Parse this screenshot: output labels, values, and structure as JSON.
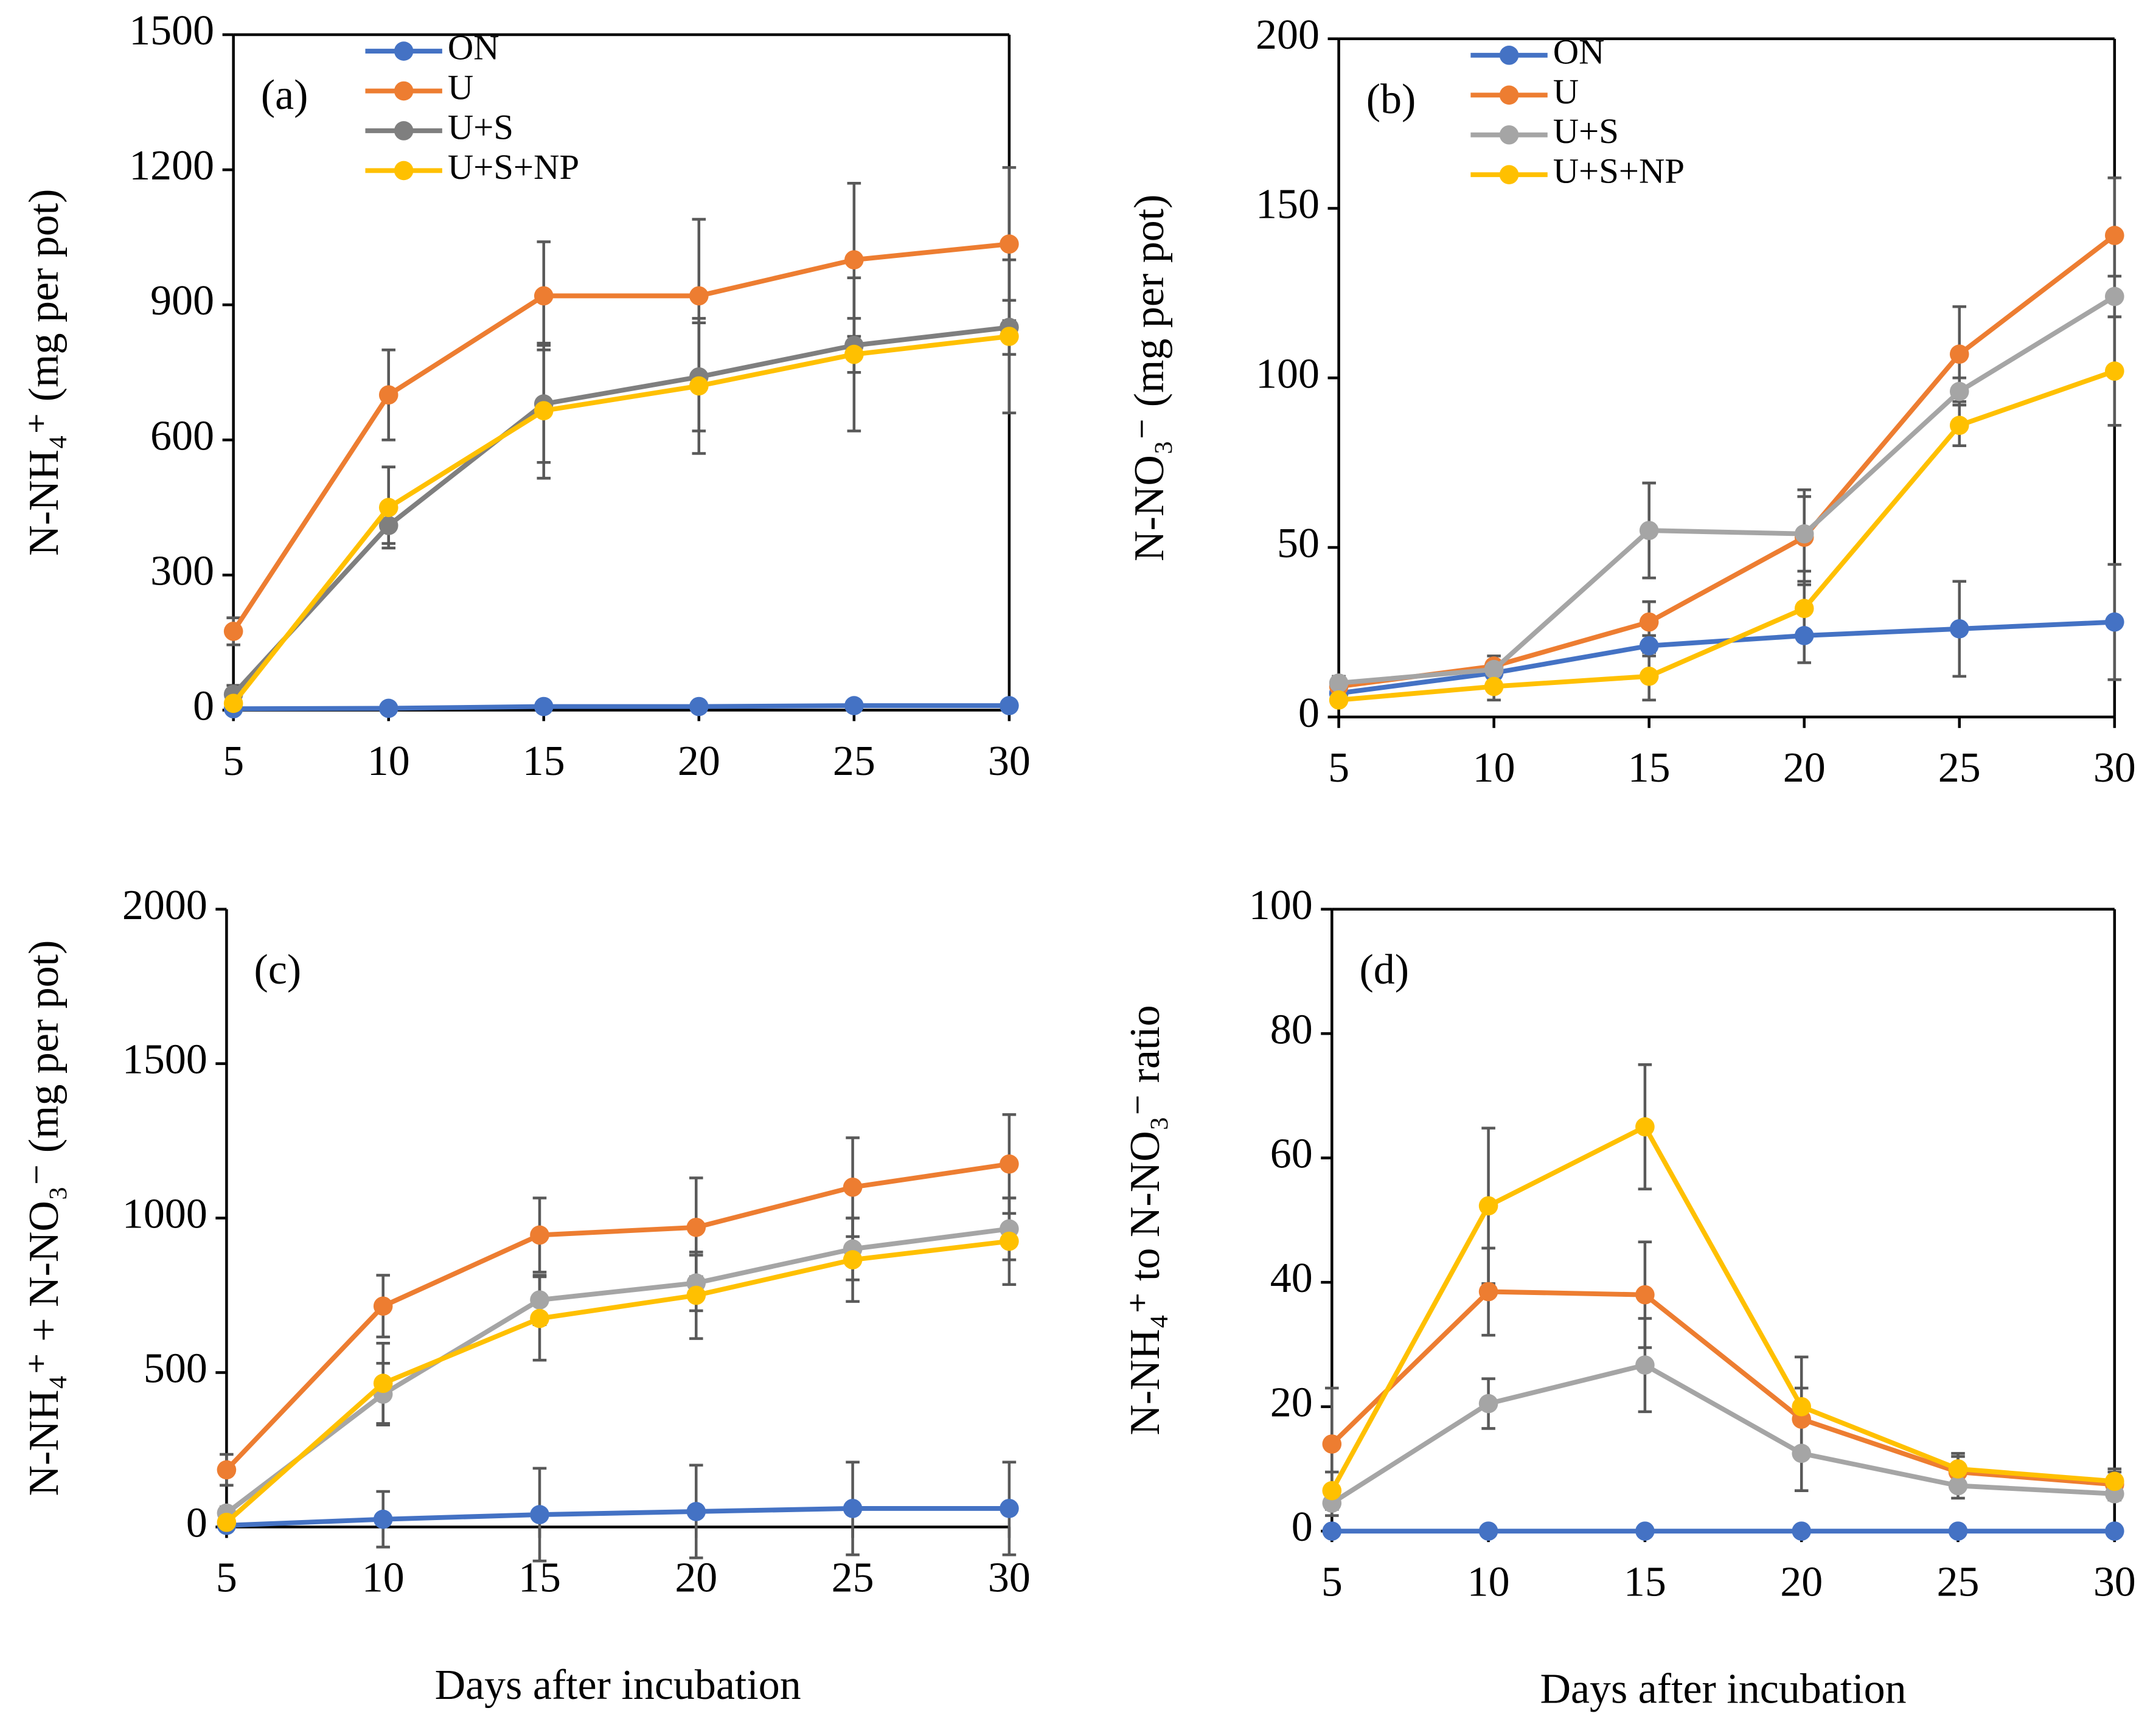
{
  "chart_data": [
    {
      "type": "line",
      "annotation": "(a)",
      "ylabel": "N-NH₄⁺ (mg per pot)",
      "x": [
        5,
        10,
        15,
        20,
        25,
        30
      ],
      "xlim": [
        5,
        30
      ],
      "xticks": [
        5,
        10,
        15,
        20,
        25,
        30
      ],
      "ylim": [
        0,
        1500
      ],
      "yticks": [
        0,
        300,
        600,
        900,
        1200,
        1500
      ],
      "grid": false,
      "frame": true,
      "legend": "upper center",
      "series": [
        {
          "name": "ON",
          "color": "#4472c4",
          "values": [
            3,
            4,
            8,
            8,
            10,
            10
          ],
          "errors": [
            2,
            2,
            3,
            3,
            3,
            3
          ]
        },
        {
          "name": "U",
          "color": "#ed7d31",
          "values": [
            175,
            700,
            920,
            920,
            1000,
            1035
          ],
          "errors": [
            30,
            100,
            120,
            170,
            170,
            170
          ]
        },
        {
          "name": "U+S",
          "color": "#7f7f7f",
          "values": [
            35,
            410,
            680,
            740,
            810,
            850
          ],
          "errors": [
            20,
            40,
            130,
            120,
            60,
            60
          ]
        },
        {
          "name": "U+S+NP",
          "color": "#ffc000",
          "values": [
            15,
            450,
            665,
            720,
            790,
            830
          ],
          "errors": [
            20,
            90,
            150,
            150,
            170,
            170
          ]
        }
      ]
    },
    {
      "type": "line",
      "annotation": "(b)",
      "ylabel": "N-NO₃⁻ (mg per pot)",
      "x": [
        5,
        10,
        15,
        20,
        25,
        30
      ],
      "xlim": [
        5,
        30
      ],
      "xticks": [
        5,
        10,
        15,
        20,
        25,
        30
      ],
      "ylim": [
        0,
        200
      ],
      "yticks": [
        0,
        50,
        100,
        150,
        200
      ],
      "grid": false,
      "frame": true,
      "legend": "upper center",
      "series": [
        {
          "name": "ON",
          "color": "#4472c4",
          "values": [
            7,
            13,
            21,
            24,
            26,
            28
          ],
          "errors": [
            2,
            3,
            3,
            8,
            14,
            17
          ]
        },
        {
          "name": "U",
          "color": "#ed7d31",
          "values": [
            9,
            15,
            28,
            53,
            107,
            142
          ],
          "errors": [
            2,
            3,
            6,
            14,
            14,
            17
          ]
        },
        {
          "name": "U+S",
          "color": "#a5a5a5",
          "values": [
            10,
            14,
            55,
            54,
            96,
            124
          ],
          "errors": [
            2,
            2,
            14,
            11,
            4,
            6
          ]
        },
        {
          "name": "U+S+NP",
          "color": "#ffc000",
          "values": [
            5,
            9,
            12,
            32,
            86,
            102
          ],
          "errors": [
            1,
            4,
            7,
            8,
            6,
            16
          ]
        }
      ]
    },
    {
      "type": "line",
      "annotation": "(c)",
      "ylabel": "N-NH₄⁺ + N-NO₃⁻ (mg per pot)",
      "xlabel": "Days after incubation",
      "x": [
        5,
        10,
        15,
        20,
        25,
        30
      ],
      "xlim": [
        5,
        30
      ],
      "xticks": [
        5,
        10,
        15,
        20,
        25,
        30
      ],
      "ylim": [
        0,
        2000
      ],
      "yticks": [
        0,
        500,
        1000,
        1500,
        2000
      ],
      "grid": false,
      "frame": false,
      "series": [
        {
          "name": "ON",
          "color": "#4472c4",
          "values": [
            5,
            25,
            40,
            50,
            60,
            60
          ],
          "errors": [
            10,
            90,
            150,
            150,
            150,
            150
          ]
        },
        {
          "name": "U",
          "color": "#ed7d31",
          "values": [
            185,
            715,
            945,
            970,
            1100,
            1175
          ],
          "errors": [
            50,
            100,
            120,
            160,
            160,
            160
          ]
        },
        {
          "name": "U+S",
          "color": "#a5a5a5",
          "values": [
            45,
            430,
            735,
            790,
            900,
            965
          ],
          "errors": [
            20,
            100,
            80,
            90,
            100,
            100
          ]
        },
        {
          "name": "U+S+NP",
          "color": "#ffc000",
          "values": [
            15,
            465,
            675,
            750,
            865,
            925
          ],
          "errors": [
            20,
            130,
            135,
            140,
            135,
            140
          ]
        }
      ]
    },
    {
      "type": "line",
      "annotation": "(d)",
      "ylabel": "N-NH₄⁺  to N-NO₃⁻ ratio",
      "xlabel": "Days after incubation",
      "x": [
        5,
        10,
        15,
        20,
        25,
        30
      ],
      "xlim": [
        5,
        30
      ],
      "xticks": [
        5,
        10,
        15,
        20,
        25,
        30
      ],
      "ylim": [
        0,
        100
      ],
      "yticks": [
        0,
        20,
        40,
        60,
        80,
        100
      ],
      "grid": false,
      "frame": true,
      "series": [
        {
          "name": "ON",
          "color": "#4472c4",
          "values": [
            0,
            0,
            0,
            0,
            0,
            0
          ],
          "errors": [
            0,
            0,
            0,
            0,
            0,
            0
          ]
        },
        {
          "name": "U",
          "color": "#ed7d31",
          "values": [
            14,
            38.5,
            38,
            18,
            9.5,
            7.5
          ],
          "errors": [
            9,
            7,
            8.5,
            5,
            3,
            2
          ]
        },
        {
          "name": "U+S",
          "color": "#a5a5a5",
          "values": [
            4.5,
            20.5,
            26.7,
            12.5,
            7.3,
            6
          ],
          "errors": [
            2,
            4,
            7.5,
            6,
            2,
            1
          ]
        },
        {
          "name": "U+S+NP",
          "color": "#ffc000",
          "values": [
            6.5,
            52.3,
            65,
            20,
            10,
            8
          ],
          "errors": [
            3,
            12.5,
            10,
            8,
            2,
            2
          ]
        }
      ]
    }
  ]
}
